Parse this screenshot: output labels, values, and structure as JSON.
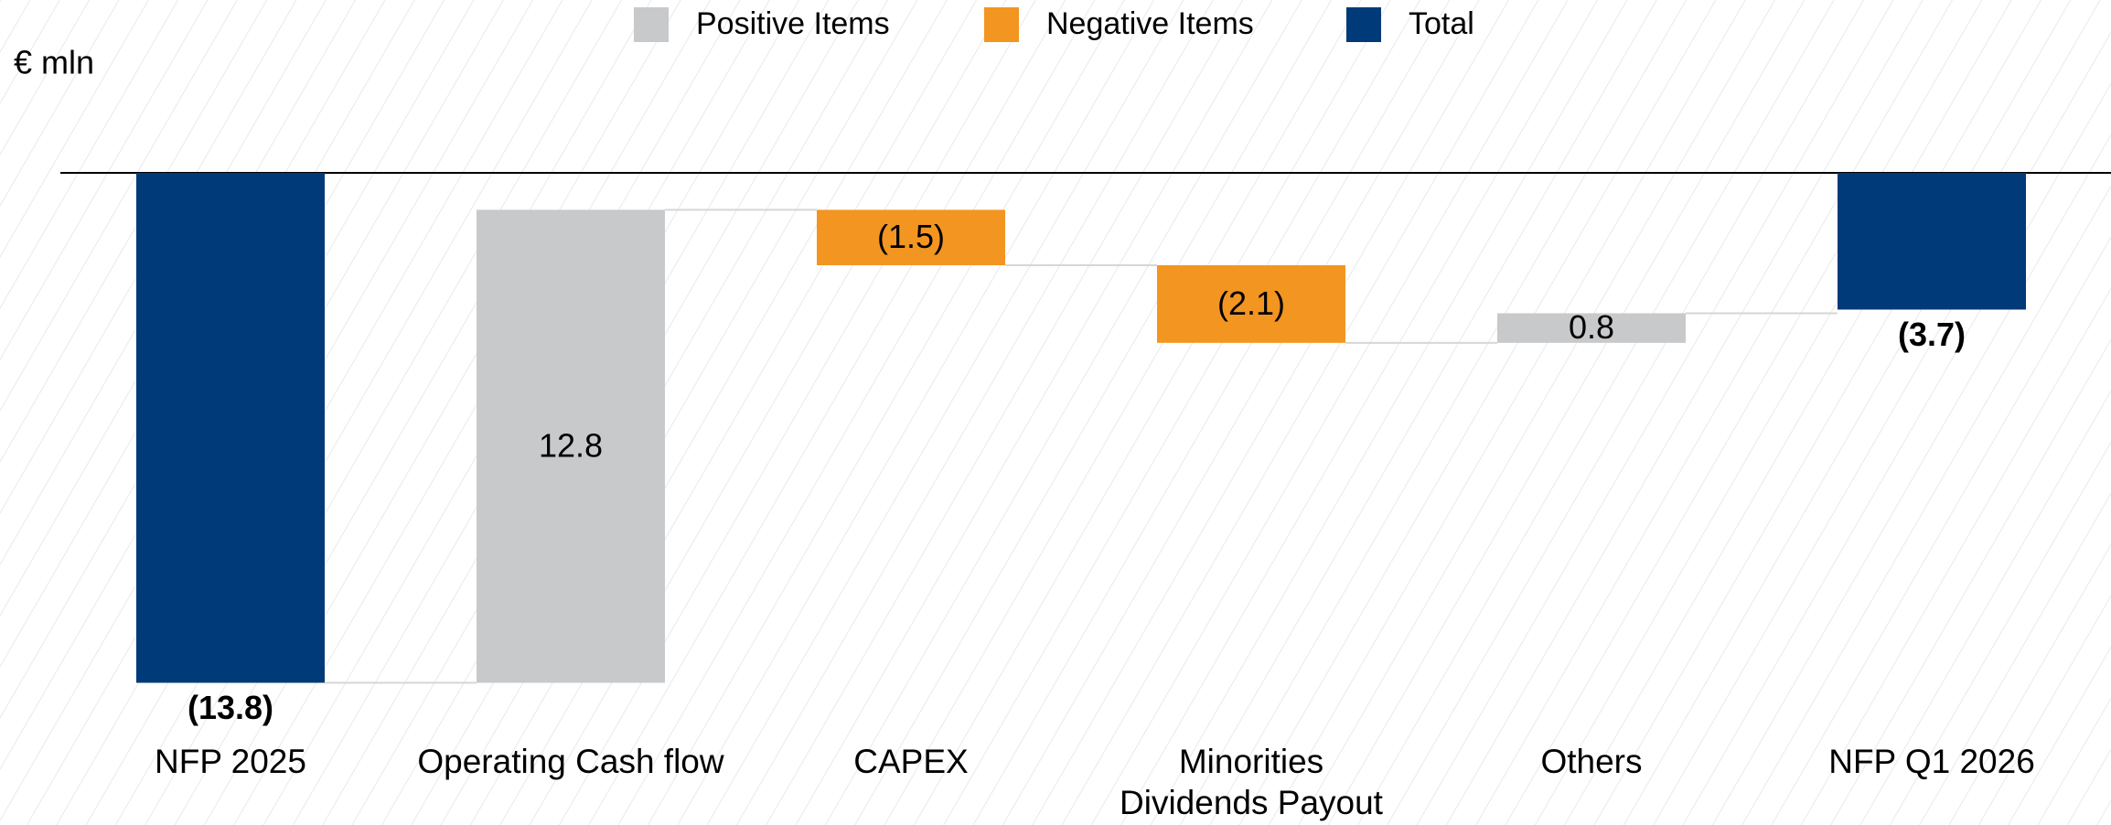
{
  "chart_data": {
    "type": "waterfall",
    "unit_label": "€ mln",
    "categories": [
      "NFP 2025",
      "Operating Cash flow",
      "CAPEX",
      "Minorities\nDividends Payout",
      "Others",
      "NFP Q1 2026"
    ],
    "values": [
      -13.8,
      12.8,
      -1.5,
      -2.1,
      0.8,
      -3.7
    ],
    "value_labels": [
      "(13.8)",
      "12.8",
      "(1.5)",
      "(2.1)",
      "0.8",
      "(3.7)"
    ],
    "legend": [
      {
        "name": "Positive Items",
        "color": "#c8c9cb"
      },
      {
        "name": "Negative Items",
        "color": "#f39521"
      },
      {
        "name": "Total",
        "color": "#003a78"
      }
    ],
    "color_index": [
      2,
      0,
      1,
      1,
      0,
      2
    ],
    "ylim": [
      -15,
      0
    ]
  }
}
